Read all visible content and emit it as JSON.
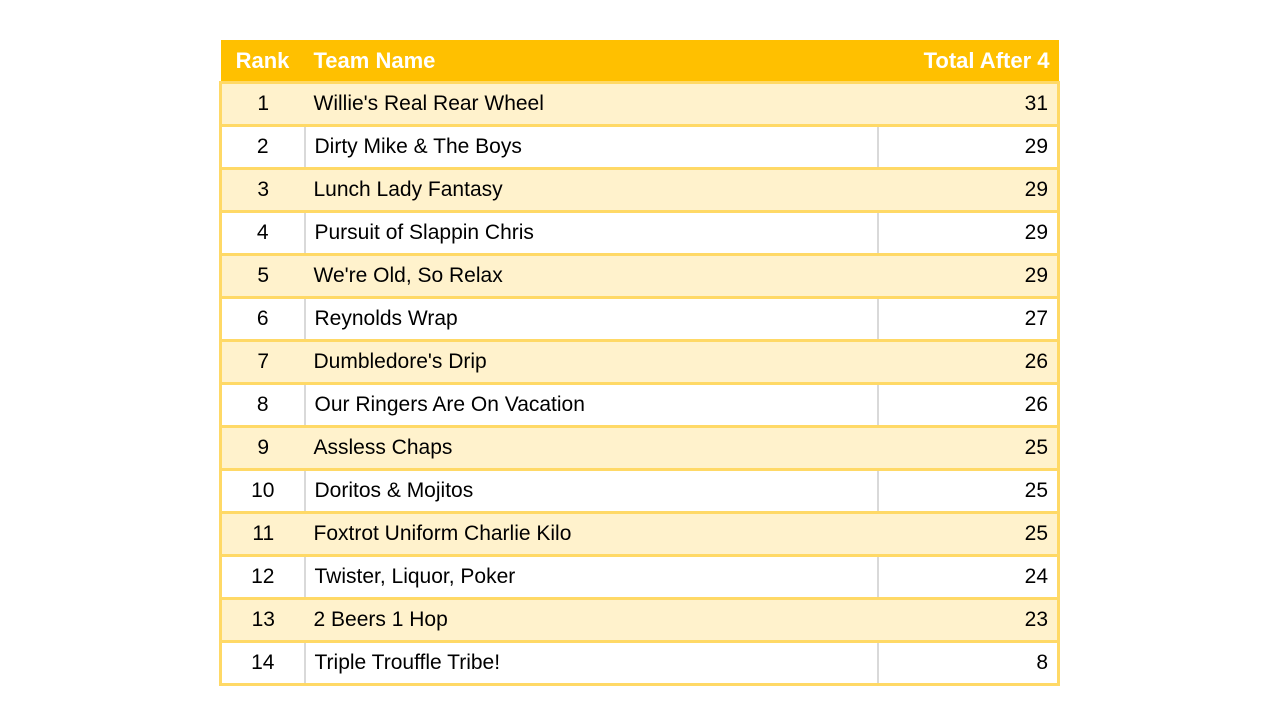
{
  "colors": {
    "page_bg": "#FFFFFF",
    "header_bg": "#FFC000",
    "header_text": "#FFFFFF",
    "band_row_bg": "#FFF2CC",
    "plain_row_bg": "#FFFFFF",
    "gold_border": "#FFD966",
    "gray_divider": "#D9D9D9",
    "cell_text": "#000000"
  },
  "chart_data": {
    "type": "table",
    "columns": [
      "Rank",
      "Team Name",
      "Total After 4"
    ],
    "rows": [
      [
        1,
        "Willie's Real Rear Wheel",
        31
      ],
      [
        2,
        "Dirty Mike & The Boys",
        29
      ],
      [
        3,
        "Lunch Lady Fantasy",
        29
      ],
      [
        4,
        "Pursuit of Slappin Chris",
        29
      ],
      [
        5,
        "We're Old, So Relax",
        29
      ],
      [
        6,
        "Reynolds Wrap",
        27
      ],
      [
        7,
        "Dumbledore's Drip",
        26
      ],
      [
        8,
        "Our Ringers Are On Vacation",
        26
      ],
      [
        9,
        "Assless Chaps",
        25
      ],
      [
        10,
        "Doritos & Mojitos",
        25
      ],
      [
        11,
        "Foxtrot Uniform Charlie Kilo",
        25
      ],
      [
        12,
        "Twister, Liquor, Poker",
        24
      ],
      [
        13,
        "2 Beers 1 Hop",
        23
      ],
      [
        14,
        "Triple Trouffle Tribe!",
        8
      ]
    ],
    "layout": {
      "banded_rows": true,
      "band_pattern": "odd rows highlighted",
      "header_alignment": [
        "center",
        "left",
        "right"
      ],
      "column_alignment": [
        "center",
        "left",
        "right"
      ]
    }
  }
}
